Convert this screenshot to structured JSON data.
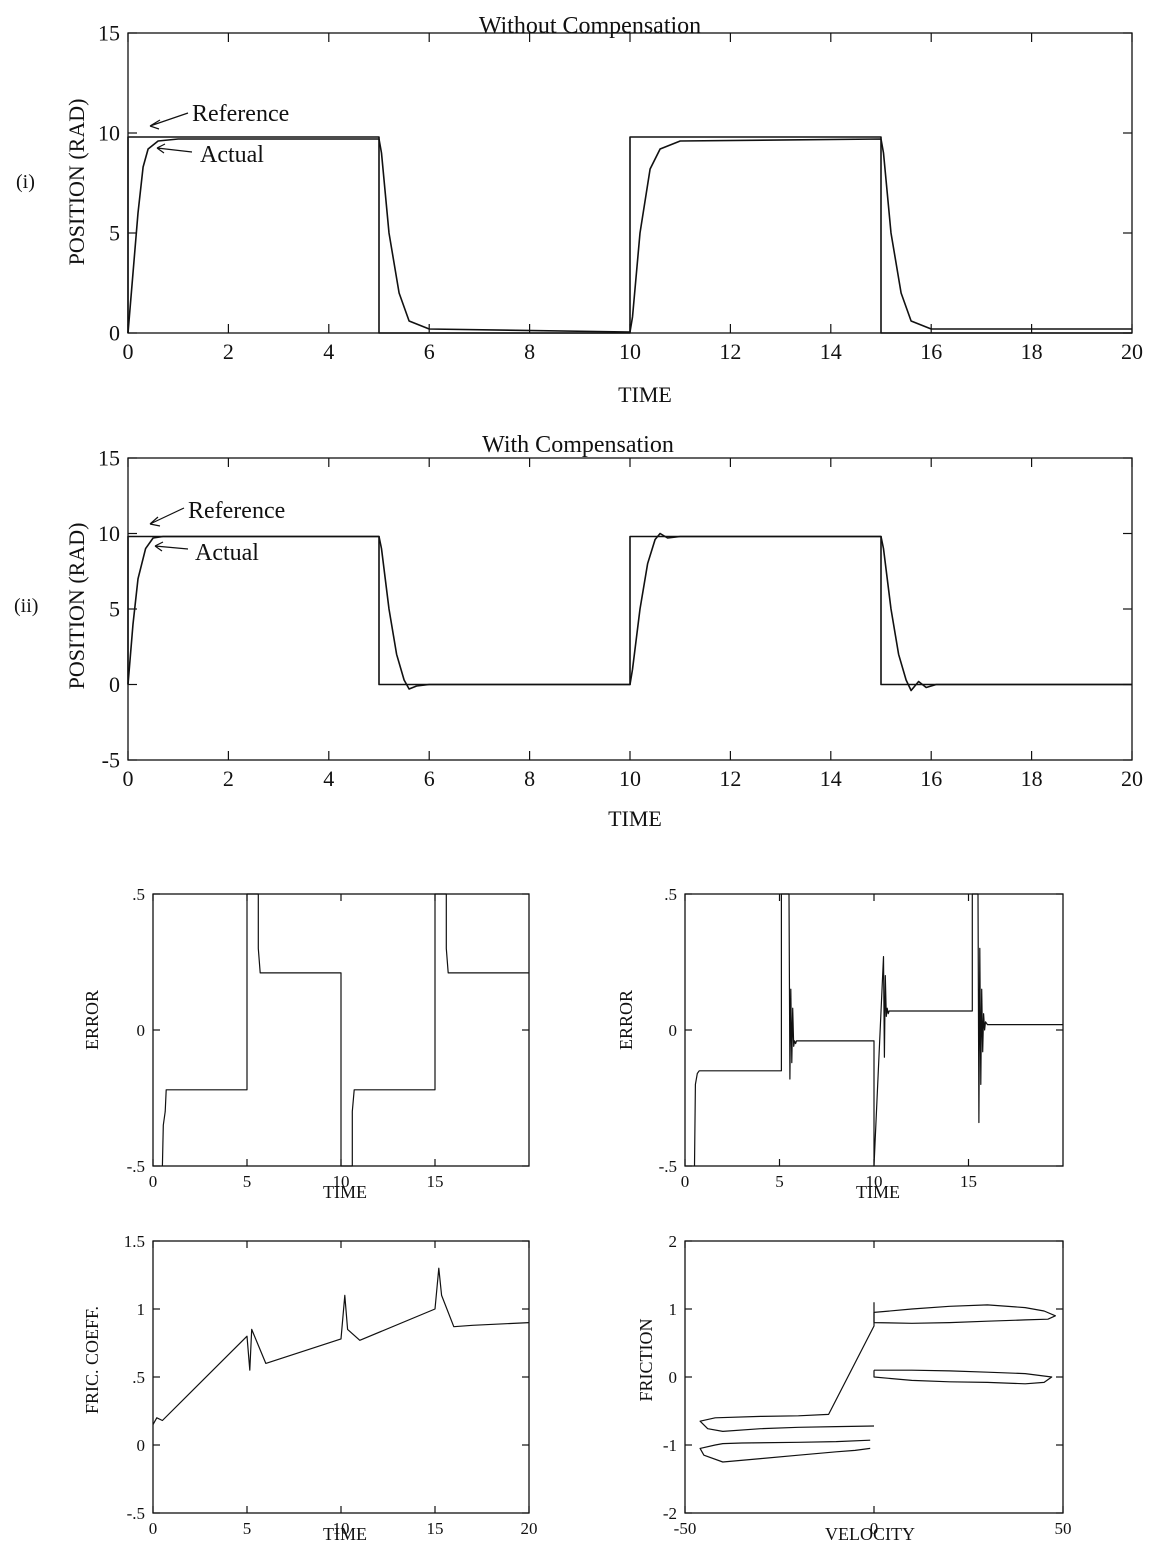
{
  "chart_data": [
    {
      "type": "line",
      "panel_label": "(i)",
      "title": "Without Compensation",
      "xlabel": "TIME",
      "ylabel": "POSITION (RAD)",
      "xlim": [
        0,
        20
      ],
      "ylim": [
        0,
        15
      ],
      "xticks": [
        0,
        2,
        4,
        6,
        8,
        10,
        12,
        14,
        16,
        18,
        20
      ],
      "yticks": [
        0,
        5,
        10,
        15
      ],
      "annotations": [
        "Reference",
        "Actual"
      ],
      "series": [
        {
          "name": "Reference",
          "x": [
            0,
            0,
            5,
            5,
            10,
            10,
            15,
            15,
            20
          ],
          "y": [
            0,
            9.8,
            9.8,
            0,
            0,
            9.8,
            9.8,
            0,
            0
          ]
        },
        {
          "name": "Actual",
          "x": [
            0,
            0.1,
            0.2,
            0.3,
            0.4,
            0.6,
            1,
            5,
            5.05,
            5.2,
            5.4,
            5.6,
            6,
            10,
            10.05,
            10.2,
            10.4,
            10.6,
            11,
            15,
            15.05,
            15.2,
            15.4,
            15.6,
            16,
            20
          ],
          "y": [
            0,
            3,
            6,
            8.3,
            9.2,
            9.6,
            9.7,
            9.7,
            9,
            5,
            2,
            0.6,
            0.2,
            0.05,
            0.8,
            5,
            8.2,
            9.2,
            9.6,
            9.7,
            9,
            5,
            2,
            0.6,
            0.2,
            0.2
          ]
        }
      ]
    },
    {
      "type": "line",
      "panel_label": "(ii)",
      "title": "With Compensation",
      "xlabel": "TIME",
      "ylabel": "POSITION (RAD)",
      "xlim": [
        0,
        20
      ],
      "ylim": [
        -5,
        15
      ],
      "xticks": [
        0,
        2,
        4,
        6,
        8,
        10,
        12,
        14,
        16,
        18,
        20
      ],
      "yticks": [
        -5,
        0,
        5,
        10,
        15
      ],
      "annotations": [
        "Reference",
        "Actual"
      ],
      "series": [
        {
          "name": "Reference",
          "x": [
            0,
            0,
            5,
            5,
            10,
            10,
            15,
            15,
            20
          ],
          "y": [
            0,
            9.8,
            9.8,
            0,
            0,
            9.8,
            9.8,
            0,
            0
          ]
        },
        {
          "name": "Actual",
          "x": [
            0,
            0.1,
            0.2,
            0.35,
            0.5,
            0.7,
            5,
            5.05,
            5.2,
            5.35,
            5.5,
            5.6,
            5.75,
            6,
            10,
            10.05,
            10.2,
            10.35,
            10.5,
            10.6,
            10.75,
            11,
            15,
            15.05,
            15.2,
            15.35,
            15.5,
            15.6,
            15.75,
            15.9,
            16.1,
            20
          ],
          "y": [
            0,
            4,
            7,
            9,
            9.7,
            9.8,
            9.8,
            9,
            5,
            2,
            0.3,
            -0.3,
            -0.1,
            0,
            0,
            1,
            5,
            8,
            9.6,
            10,
            9.7,
            9.8,
            9.8,
            9,
            5,
            2,
            0.3,
            -0.4,
            0.2,
            -0.2,
            0,
            0
          ]
        }
      ]
    },
    {
      "type": "line",
      "title": "",
      "xlabel": "TIME",
      "ylabel": "ERROR",
      "xlim": [
        0,
        20
      ],
      "ylim": [
        -0.5,
        0.5
      ],
      "xticks": [
        0,
        5,
        10,
        15
      ],
      "yticks": [
        -0.5,
        0,
        0.5
      ],
      "series": [
        {
          "x": [
            0.5,
            0.55,
            0.65,
            0.7,
            5,
            5,
            5.6,
            5.6,
            5.7,
            10,
            10,
            10.6,
            10.6,
            10.7,
            15,
            15,
            15.6,
            15.6,
            15.7,
            20
          ],
          "y": [
            -0.5,
            -0.35,
            -0.3,
            -0.22,
            -0.22,
            0.5,
            0.5,
            0.3,
            0.21,
            0.21,
            -0.5,
            -0.5,
            -0.3,
            -0.22,
            -0.22,
            0.5,
            0.5,
            0.3,
            0.21,
            0.21
          ]
        }
      ]
    },
    {
      "type": "line",
      "title": "",
      "xlabel": "TIME",
      "ylabel": "ERROR",
      "xlim": [
        0,
        20
      ],
      "ylim": [
        -0.5,
        0.5
      ],
      "xticks": [
        0,
        5,
        10,
        15
      ],
      "yticks": [
        -0.5,
        0,
        0.5
      ],
      "series": [
        {
          "x": [
            0.5,
            0.55,
            0.65,
            0.75,
            5.1,
            5.1,
            5.5,
            5.55,
            5.6,
            5.65,
            5.7,
            5.75,
            5.8,
            5.85,
            5.9,
            6,
            10,
            10,
            10.5,
            10.55,
            10.6,
            10.65,
            10.7,
            10.75,
            10.8,
            10.9,
            11,
            15.2,
            15.2,
            15.5,
            15.55,
            15.6,
            15.65,
            15.7,
            15.75,
            15.8,
            15.85,
            15.9,
            16.0,
            16.2,
            20
          ],
          "y": [
            -0.5,
            -0.2,
            -0.16,
            -0.15,
            -0.15,
            0.5,
            0.5,
            -0.18,
            0.15,
            -0.12,
            0.08,
            -0.06,
            -0.04,
            -0.05,
            -0.04,
            -0.04,
            -0.04,
            -0.5,
            0.27,
            -0.1,
            0.2,
            0.05,
            0.08,
            0.06,
            0.07,
            0.07,
            0.07,
            0.07,
            0.5,
            0.5,
            -0.34,
            0.3,
            -0.2,
            0.15,
            -0.08,
            0.06,
            0.0,
            0.03,
            0.02,
            0.02,
            0.02
          ]
        }
      ]
    },
    {
      "type": "line",
      "title": "",
      "xlabel": "TIME",
      "ylabel": "FRIC. COEFF.",
      "xlim": [
        0,
        20
      ],
      "ylim": [
        -0.5,
        1.5
      ],
      "xticks": [
        0,
        5,
        10,
        15,
        20
      ],
      "yticks": [
        -0.5,
        0,
        0.5,
        1,
        1.5
      ],
      "series": [
        {
          "x": [
            0,
            0.2,
            0.5,
            5,
            5.15,
            5.25,
            6,
            10,
            10.2,
            10.35,
            11,
            15,
            15.2,
            15.35,
            16,
            17,
            20
          ],
          "y": [
            0.15,
            0.2,
            0.18,
            0.8,
            0.55,
            0.85,
            0.6,
            0.78,
            1.1,
            0.85,
            0.77,
            1.0,
            1.3,
            1.1,
            0.87,
            0.88,
            0.9
          ]
        }
      ]
    },
    {
      "type": "line",
      "title": "",
      "xlabel": "VELOCITY",
      "ylabel": "FRICTION",
      "xlim": [
        -50,
        50
      ],
      "ylim": [
        -2,
        2
      ],
      "xticks": [
        -50,
        0,
        50
      ],
      "yticks": [
        -2,
        -1,
        0,
        1,
        2
      ],
      "series": [
        {
          "x": [
            0,
            0,
            10,
            20,
            30,
            40,
            45,
            48,
            46,
            40,
            30,
            20,
            10,
            0
          ],
          "y": [
            0.8,
            0.95,
            1.0,
            1.04,
            1.06,
            1.02,
            0.97,
            0.9,
            0.85,
            0.84,
            0.82,
            0.8,
            0.79,
            0.8
          ]
        },
        {
          "x": [
            0,
            10,
            20,
            30,
            40,
            47,
            45,
            40,
            30,
            20,
            10,
            0,
            0
          ],
          "y": [
            0.1,
            0.1,
            0.09,
            0.07,
            0.05,
            0.0,
            -0.08,
            -0.1,
            -0.08,
            -0.07,
            -0.05,
            0.0,
            0.1
          ]
        },
        {
          "x": [
            -1,
            -5,
            -10,
            -20,
            -30,
            -40,
            -45,
            -46,
            -42,
            -40,
            -35,
            -20,
            -10,
            -1
          ],
          "y": [
            -1.05,
            -1.08,
            -1.1,
            -1.15,
            -1.2,
            -1.25,
            -1.15,
            -1.05,
            -1.0,
            -0.98,
            -0.97,
            -0.96,
            -0.95,
            -0.93
          ]
        },
        {
          "x": [
            0,
            -10,
            -20,
            -30,
            -40,
            -44,
            -46,
            -42,
            -30,
            -20,
            -12,
            0,
            0
          ],
          "y": [
            -0.72,
            -0.73,
            -0.74,
            -0.76,
            -0.8,
            -0.76,
            -0.65,
            -0.6,
            -0.58,
            -0.57,
            -0.55,
            0.75,
            1.1
          ]
        }
      ]
    }
  ]
}
